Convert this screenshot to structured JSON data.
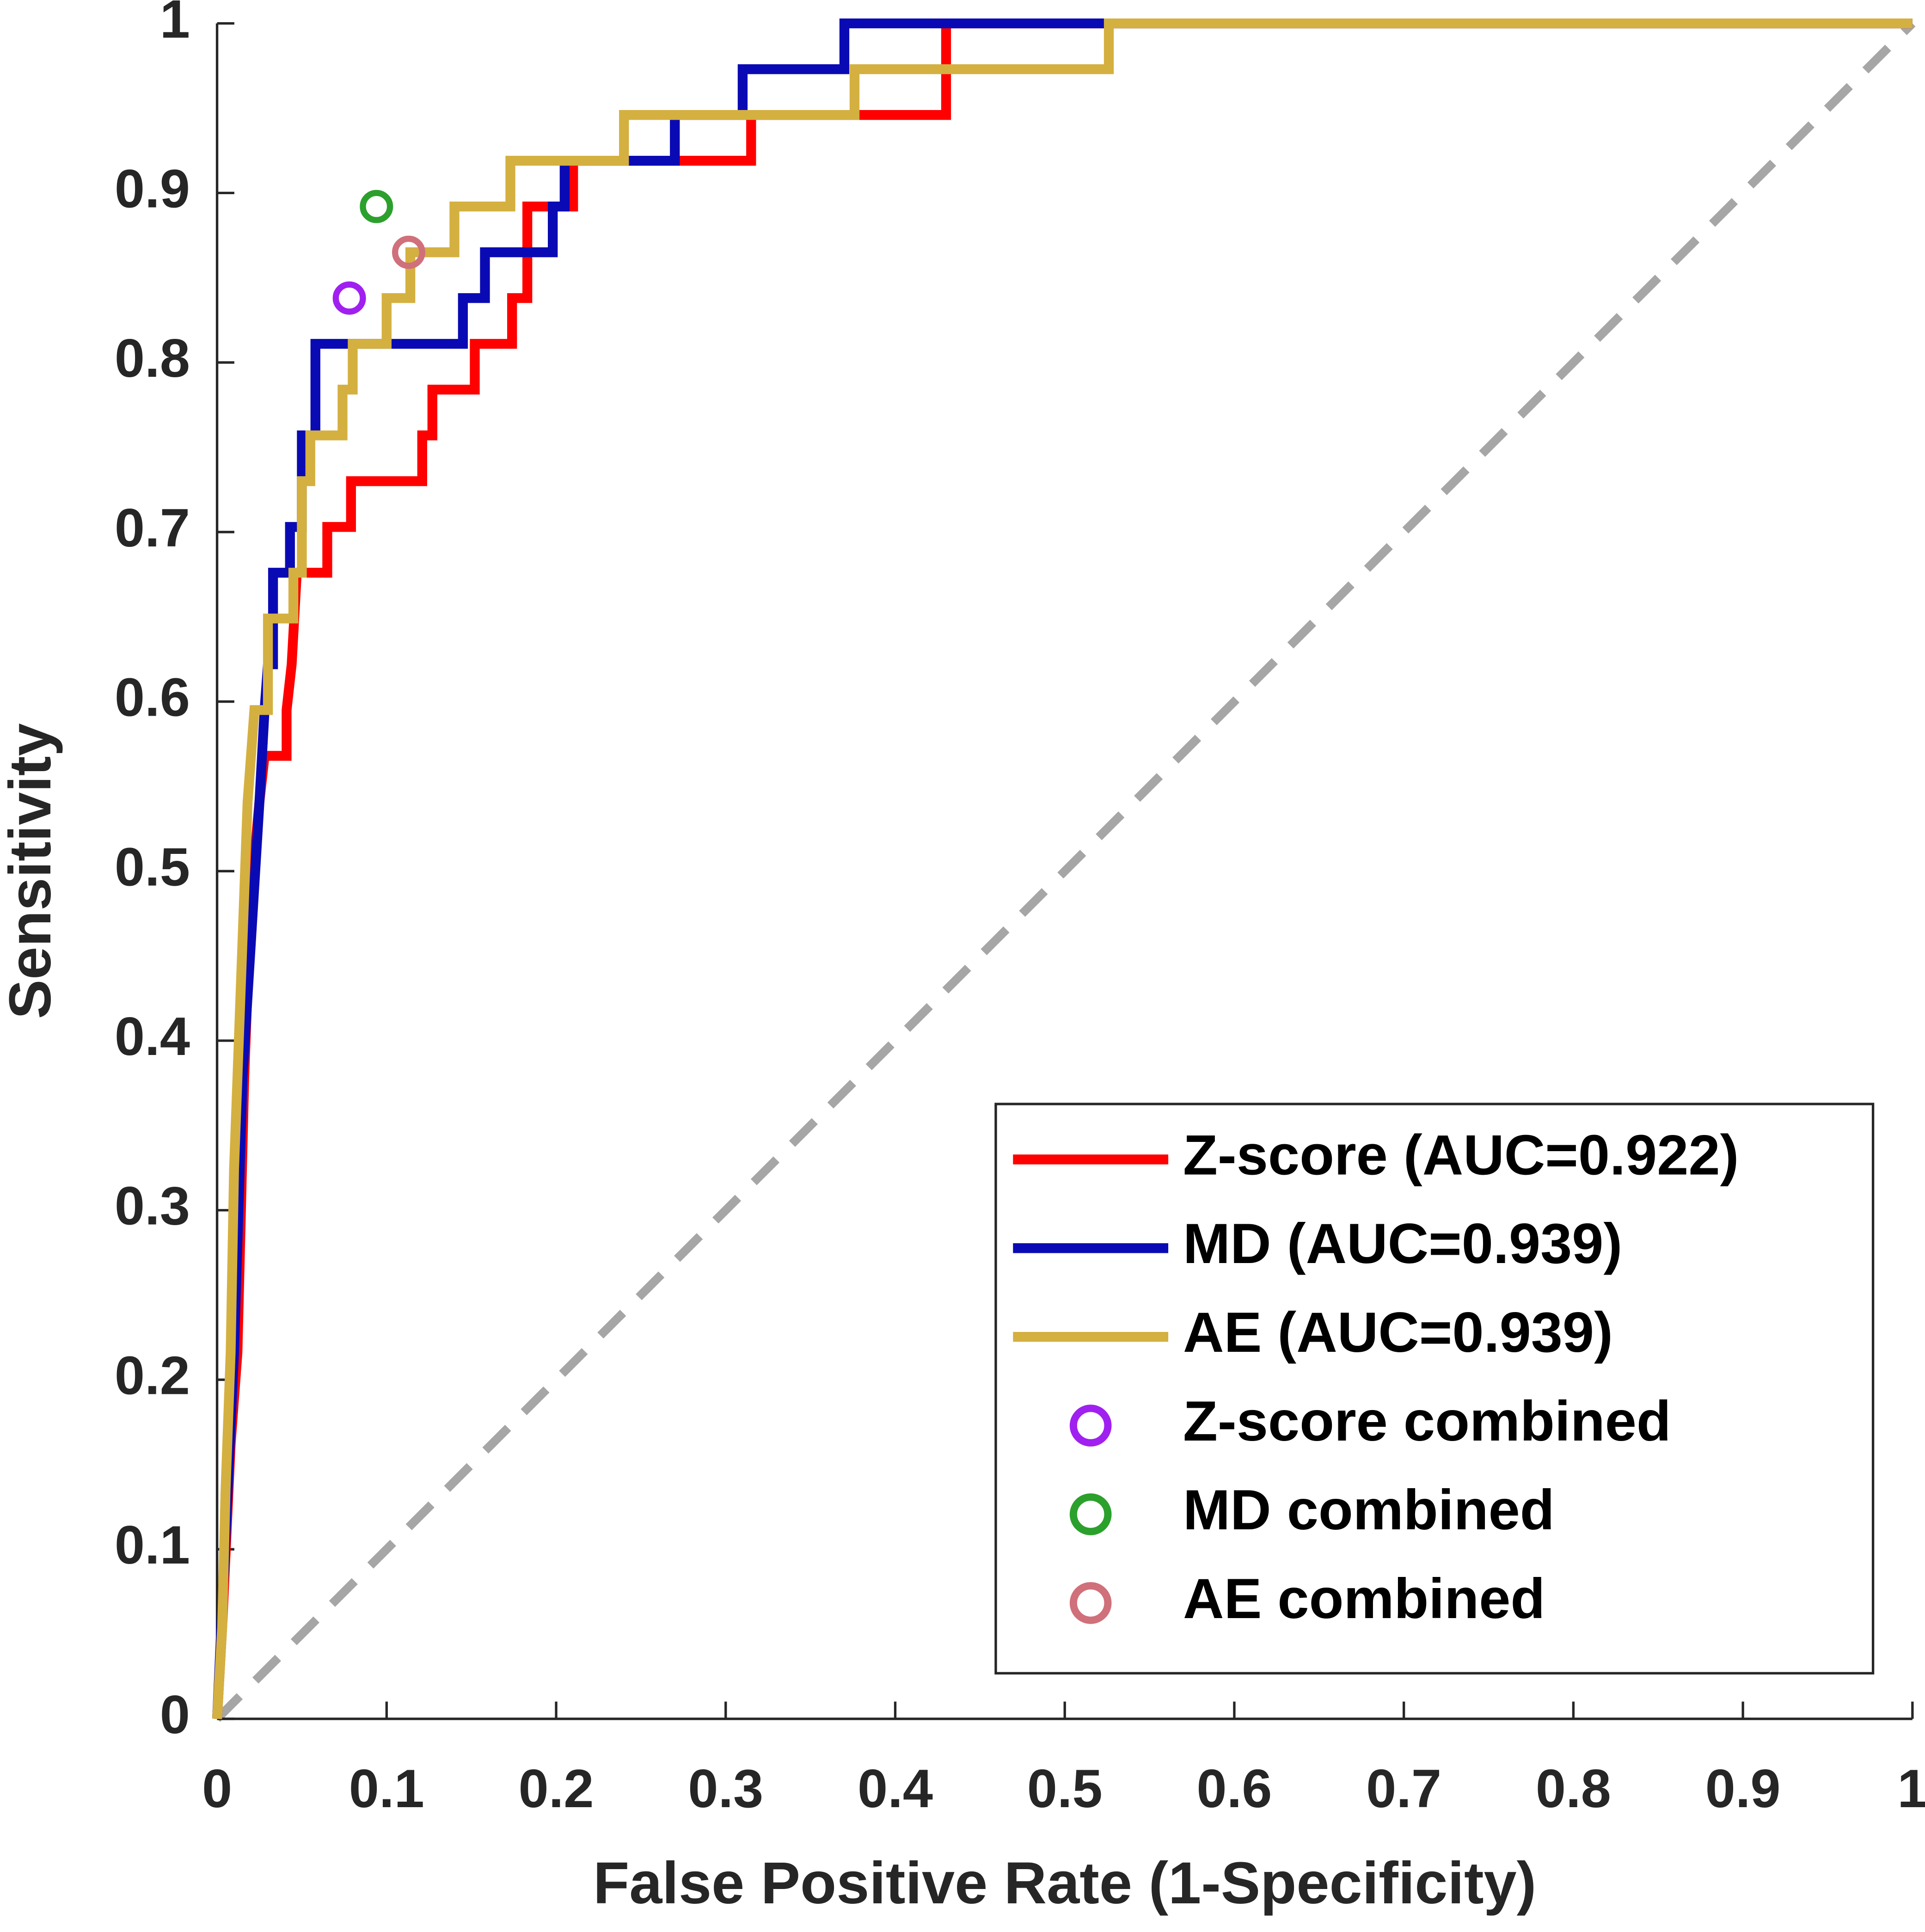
{
  "chart_data": {
    "type": "line",
    "xlabel": "False Positive Rate (1-Specificity)",
    "ylabel": "Sensitivity",
    "xlim": [
      0,
      1
    ],
    "ylim": [
      0,
      1
    ],
    "xticks": [
      0,
      0.1,
      0.2,
      0.3,
      0.4,
      0.5,
      0.6,
      0.7,
      0.8,
      0.9,
      1
    ],
    "yticks": [
      0,
      0.1,
      0.2,
      0.3,
      0.4,
      0.5,
      0.6,
      0.7,
      0.8,
      0.9,
      1
    ],
    "legend": "lower right",
    "series": [
      {
        "name": "Z-score (AUC=0.922)",
        "color": "#ff0000",
        "x": [
          0,
          0.003,
          0.008,
          0.012,
          0.016,
          0.02,
          0.025,
          0.028,
          0.041,
          0.041,
          0.044,
          0.047,
          0.065,
          0.065,
          0.079,
          0.079,
          0.121,
          0.121,
          0.127,
          0.127,
          0.152,
          0.152,
          0.174,
          0.174,
          0.183,
          0.183,
          0.21,
          0.21,
          0.315,
          0.315,
          0.43,
          0.43,
          1
        ],
        "values": [
          0,
          0.054,
          0.162,
          0.216,
          0.378,
          0.486,
          0.541,
          0.568,
          0.568,
          0.595,
          0.622,
          0.676,
          0.676,
          0.703,
          0.703,
          0.73,
          0.73,
          0.757,
          0.757,
          0.784,
          0.784,
          0.811,
          0.811,
          0.838,
          0.838,
          0.892,
          0.892,
          0.919,
          0.919,
          0.946,
          0.946,
          1,
          1
        ]
      },
      {
        "name": "MD (AUC=0.939)",
        "color": "#0a0ab4",
        "x": [
          0,
          0.005,
          0.01,
          0.015,
          0.02,
          0.025,
          0.028,
          0.03,
          0.033,
          0.033,
          0.043,
          0.043,
          0.05,
          0.05,
          0.058,
          0.058,
          0.145,
          0.145,
          0.158,
          0.158,
          0.198,
          0.198,
          0.205,
          0.205,
          0.27,
          0.27,
          0.31,
          0.31,
          0.37,
          0.37,
          1
        ],
        "values": [
          0,
          0.108,
          0.216,
          0.378,
          0.459,
          0.541,
          0.595,
          0.622,
          0.622,
          0.676,
          0.676,
          0.703,
          0.703,
          0.757,
          0.757,
          0.811,
          0.811,
          0.838,
          0.838,
          0.865,
          0.865,
          0.892,
          0.892,
          0.919,
          0.919,
          0.946,
          0.946,
          0.973,
          0.973,
          1,
          1
        ]
      },
      {
        "name": "AE (AUC=0.939)",
        "color": "#d4b040",
        "x": [
          0,
          0.003,
          0.005,
          0.008,
          0.01,
          0.012,
          0.015,
          0.018,
          0.02,
          0.022,
          0.03,
          0.03,
          0.045,
          0.045,
          0.05,
          0.05,
          0.055,
          0.055,
          0.074,
          0.074,
          0.08,
          0.08,
          0.1,
          0.1,
          0.114,
          0.114,
          0.14,
          0.14,
          0.173,
          0.173,
          0.24,
          0.24,
          0.376,
          0.376,
          0.526,
          0.526,
          1
        ],
        "values": [
          0,
          0.054,
          0.135,
          0.216,
          0.324,
          0.378,
          0.459,
          0.541,
          0.568,
          0.595,
          0.595,
          0.649,
          0.649,
          0.676,
          0.676,
          0.73,
          0.73,
          0.757,
          0.757,
          0.784,
          0.784,
          0.811,
          0.811,
          0.838,
          0.838,
          0.865,
          0.865,
          0.892,
          0.892,
          0.919,
          0.919,
          0.946,
          0.946,
          0.973,
          0.973,
          1,
          1
        ]
      },
      {
        "name": "Z-score combined",
        "color": "#a020f0",
        "marker": "circle",
        "x": [
          0.078
        ],
        "values": [
          0.838
        ]
      },
      {
        "name": "MD combined",
        "color": "#2ca02c",
        "marker": "circle",
        "x": [
          0.094
        ],
        "values": [
          0.892
        ]
      },
      {
        "name": "AE combined",
        "color": "#d0707a",
        "marker": "circle",
        "x": [
          0.113
        ],
        "values": [
          0.865
        ]
      }
    ]
  }
}
